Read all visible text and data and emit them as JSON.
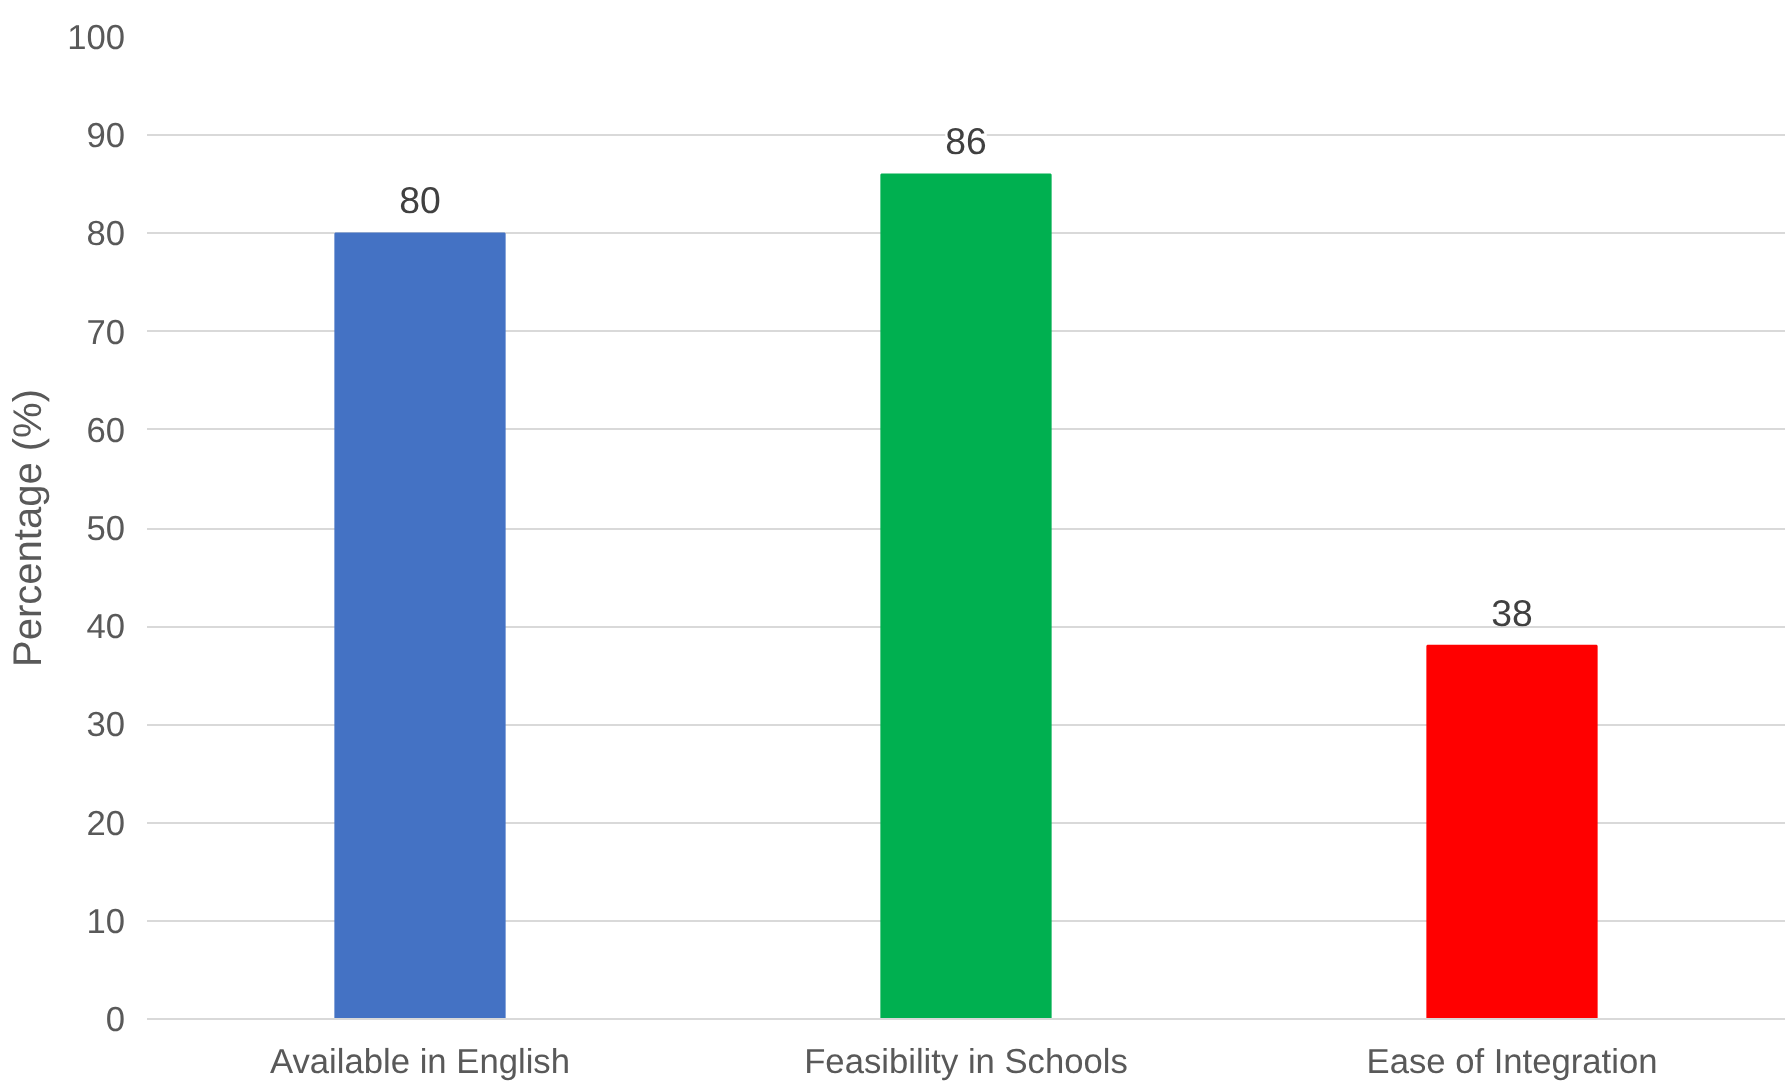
{
  "chart_data": {
    "type": "bar",
    "ylabel": "Percentage (%)",
    "categories": [
      "Available in English",
      "Feasibility in Schools",
      "Ease of Integration"
    ],
    "values": [
      80,
      86,
      38
    ],
    "colors": [
      "#4472c4",
      "#00b050",
      "#ff0000"
    ],
    "ylim": [
      0,
      100
    ],
    "yticks": [
      0,
      10,
      20,
      30,
      40,
      50,
      60,
      70,
      80,
      90,
      100
    ],
    "grid": "y",
    "data_labels": true
  }
}
